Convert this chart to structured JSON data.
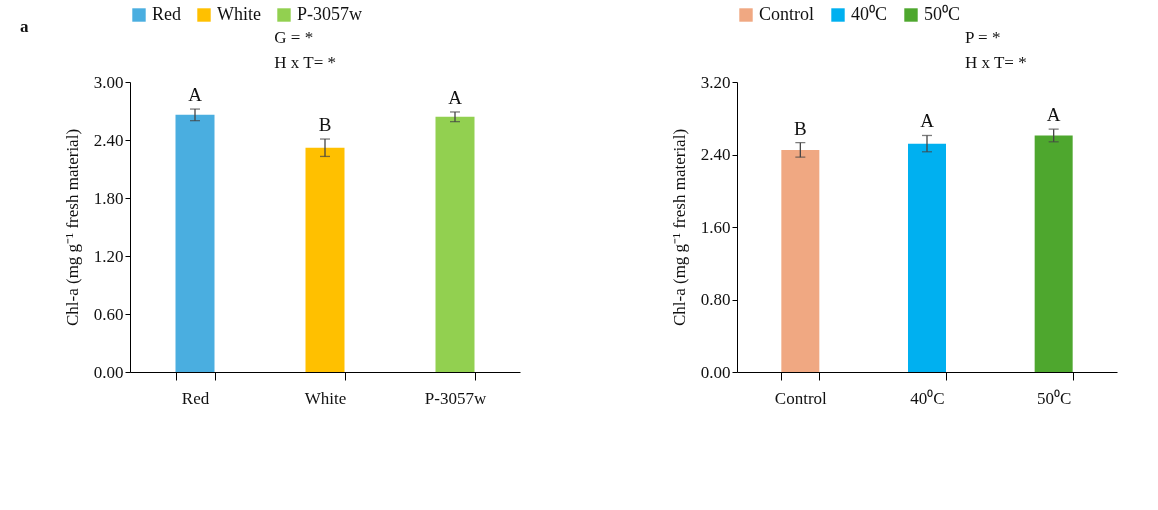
{
  "chart_data": [
    {
      "type": "bar",
      "title": "a",
      "categories": [
        "Red",
        "White",
        "P-3057w"
      ],
      "ylabel": "Chl-a (mg g⁻¹ fresh material)",
      "ylim": [
        0,
        3
      ],
      "yticks": [
        {
          "value": 0,
          "label": "0.00"
        },
        {
          "value": 0.6,
          "label": "0.60"
        },
        {
          "value": 1.2,
          "label": "1.20"
        },
        {
          "value": 1.8,
          "label": "1.80"
        },
        {
          "value": 2.4,
          "label": "2.40"
        },
        {
          "value": 3,
          "label": "3.00"
        }
      ],
      "legend": "top",
      "series": [
        {
          "name": "Red",
          "color": "#4aaee0",
          "values": [
            2.66,
            null,
            null
          ],
          "errors": [
            0.06,
            null,
            null
          ]
        },
        {
          "name": "White",
          "color": "#ffc000",
          "values": [
            null,
            2.32,
            null
          ],
          "errors": [
            null,
            0.09,
            null
          ]
        },
        {
          "name": "P-3057w",
          "color": "#92d050",
          "values": [
            null,
            null,
            2.64
          ],
          "errors": [
            null,
            null,
            0.05
          ]
        }
      ],
      "annotations": [
        "G = *",
        "H x T= *",
        {
          "text": "A",
          "x": "Red",
          "y": 2.66
        },
        {
          "text": "B",
          "x": "White",
          "y": 2.32
        },
        {
          "text": "A",
          "x": "P-3057w",
          "y": 2.64
        }
      ]
    },
    {
      "type": "bar",
      "categories": [
        "Control",
        "40⁰C",
        "50⁰C"
      ],
      "ylabel": "Chl-a (mg g⁻¹ fresh material)",
      "ylim": [
        0,
        3.2
      ],
      "yticks": [
        {
          "value": 0,
          "label": "0.00"
        },
        {
          "value": 0.8,
          "label": "0.80"
        },
        {
          "value": 1.6,
          "label": "1.60"
        },
        {
          "value": 2.4,
          "label": "2.40"
        },
        {
          "value": 3.2,
          "label": "3.20"
        }
      ],
      "legend": "top",
      "series": [
        {
          "name": "Control",
          "color": "#f0a882",
          "values": [
            2.45,
            null,
            null
          ],
          "errors": [
            0.08,
            null,
            null
          ]
        },
        {
          "name": "40⁰C",
          "color": "#00b0f0",
          "values": [
            null,
            2.52,
            null
          ],
          "errors": [
            null,
            0.09,
            null
          ]
        },
        {
          "name": "50⁰C",
          "color": "#4ea72e",
          "values": [
            null,
            null,
            2.61
          ],
          "errors": [
            null,
            null,
            0.07
          ]
        }
      ],
      "annotations": [
        "P = *",
        "H x T= *",
        {
          "text": "B",
          "x": "Control",
          "y": 2.45
        },
        {
          "text": "A",
          "x": "40⁰C",
          "y": 2.52
        },
        {
          "text": "A",
          "x": "50⁰C",
          "y": 2.61
        }
      ]
    }
  ]
}
